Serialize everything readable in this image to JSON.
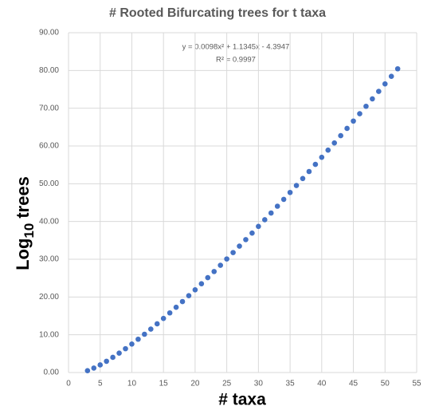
{
  "chart_data": {
    "type": "scatter",
    "title": "# Rooted Bifurcating trees for t taxa",
    "x_label": "# taxa",
    "y_label": [
      "Log",
      "10",
      "trees"
    ],
    "annotations": [
      "y = 0.0098x² + 1.1345x - 4.3947",
      "R² = 0.9997"
    ],
    "color": "#4472c4",
    "grid": true,
    "x": [
      3,
      4,
      5,
      6,
      7,
      8,
      9,
      10,
      11,
      12,
      13,
      14,
      15,
      16,
      17,
      18,
      19,
      20,
      21,
      22,
      23,
      24,
      25,
      26,
      27,
      28,
      29,
      30,
      31,
      32,
      33,
      34,
      35,
      36,
      37,
      38,
      39,
      40,
      41,
      42,
      43,
      44,
      45,
      46,
      47,
      48,
      49,
      50,
      51,
      52
    ],
    "values": [
      0.48,
      1.18,
      2.02,
      2.98,
      4.02,
      5.13,
      6.31,
      7.54,
      8.82,
      10.14,
      11.5,
      12.9,
      14.33,
      15.79,
      17.28,
      18.8,
      20.35,
      21.91,
      23.51,
      25.12,
      26.75,
      28.41,
      30.08,
      31.77,
      33.48,
      35.2,
      36.94,
      38.7,
      40.47,
      42.25,
      44.05,
      45.86,
      47.69,
      49.53,
      51.38,
      53.24,
      55.12,
      57.01,
      58.9,
      60.81,
      62.73,
      64.66,
      66.6,
      68.55,
      70.51,
      72.48,
      74.45,
      76.44,
      78.44,
      80.44
    ],
    "xlim": [
      0,
      55
    ],
    "xticks": [
      0,
      5,
      10,
      15,
      20,
      25,
      30,
      35,
      40,
      45,
      50,
      55
    ],
    "ylim": [
      0,
      90
    ],
    "yticks": [
      {
        "value": 0,
        "label": "0.00"
      },
      {
        "value": 10,
        "label": "10.00"
      },
      {
        "value": 20,
        "label": "20.00"
      },
      {
        "value": 30,
        "label": "30.00"
      },
      {
        "value": 40,
        "label": "40.00"
      },
      {
        "value": 50,
        "label": "50.00"
      },
      {
        "value": 60,
        "label": "60.00"
      },
      {
        "value": 70,
        "label": "70.00"
      },
      {
        "value": 80,
        "label": "80.00"
      },
      {
        "value": 90,
        "label": "90.00"
      }
    ]
  }
}
